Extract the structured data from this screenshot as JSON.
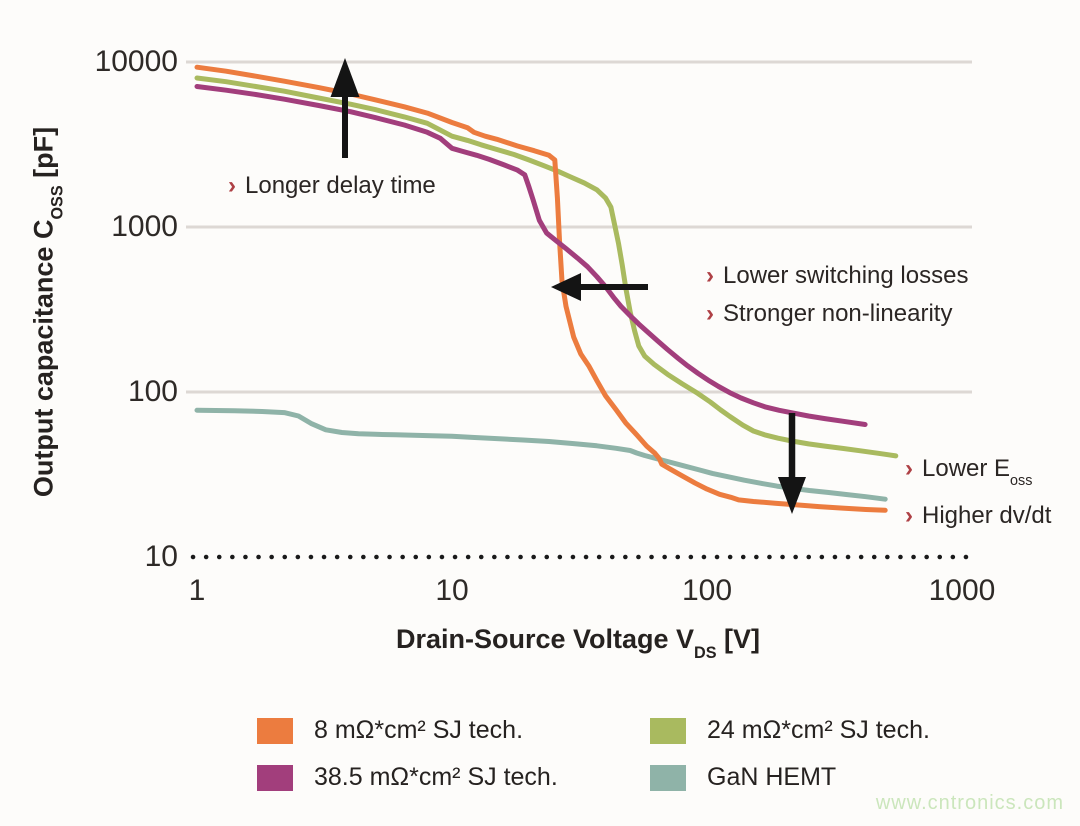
{
  "figure": {
    "watermark": "www.cntronics.com"
  },
  "colors": {
    "background": "#FDFCFA",
    "grid": "#DDD8D4",
    "baseline_dots": "#1A1A1A",
    "arrow": "#141414",
    "text": "#2B2624",
    "chevron": "#AE4045",
    "watermark": "#CBE6BC"
  },
  "axes": {
    "y": {
      "label_pre": "Output capacitance C",
      "label_sub": "OSS",
      "label_post": " [pF]",
      "ticks": [
        "10000",
        "1000",
        "100",
        "10"
      ],
      "range": [
        10,
        10000
      ]
    },
    "x": {
      "label_pre": "Drain-Source Voltage V",
      "label_sub": "DS",
      "label_post": " [V]",
      "ticks": [
        "1",
        "10",
        "100",
        "1000"
      ],
      "range": [
        1,
        1000
      ]
    }
  },
  "annotations": {
    "chevron": "›",
    "delay": {
      "line1": "Longer delay time",
      "arrow_dir": "up"
    },
    "switching": {
      "line1": "Lower switching losses",
      "line2": "Stronger non-linearity",
      "arrow_dir": "left"
    },
    "eoss": {
      "line1_pre": "Lower E",
      "line1_sub": "oss",
      "line2": "Higher dv/dt",
      "arrow_dir": "down"
    }
  },
  "chart_data": {
    "type": "line",
    "log_x": true,
    "log_y": true,
    "x_range": [
      1,
      1000
    ],
    "y_range": [
      10,
      10000
    ],
    "xlabel": "Drain-Source Voltage V_DS [V]",
    "ylabel": "Output capacitance C_OSS [pF]",
    "grid_y_values": [
      10000,
      1000,
      100
    ],
    "baseline_y_value": 10,
    "legend_position": "bottom",
    "series": [
      {
        "name": "8 mΩ*cm² SJ tech.",
        "color": "#EC7C3F",
        "points": [
          [
            1,
            9300
          ],
          [
            1.3,
            8800
          ],
          [
            1.7,
            8200
          ],
          [
            2.2,
            7650
          ],
          [
            3,
            7000
          ],
          [
            4,
            6400
          ],
          [
            5,
            5900
          ],
          [
            6.5,
            5350
          ],
          [
            8,
            4900
          ],
          [
            10,
            4300
          ],
          [
            11.5,
            4000
          ],
          [
            12.2,
            3750
          ],
          [
            13.5,
            3550
          ],
          [
            15,
            3400
          ],
          [
            18,
            3100
          ],
          [
            21,
            2900
          ],
          [
            24,
            2720
          ],
          [
            25.3,
            2550
          ],
          [
            25.9,
            1500
          ],
          [
            26.4,
            830
          ],
          [
            27,
            470
          ],
          [
            28,
            330
          ],
          [
            30,
            215
          ],
          [
            32,
            170
          ],
          [
            34.5,
            143
          ],
          [
            37,
            117
          ],
          [
            40,
            95
          ],
          [
            44,
            78
          ],
          [
            48,
            65
          ],
          [
            53,
            55
          ],
          [
            58,
            47
          ],
          [
            62.5,
            42.5
          ],
          [
            65,
            39.5
          ],
          [
            66.5,
            36.5
          ],
          [
            72,
            34
          ],
          [
            80,
            31
          ],
          [
            90,
            28
          ],
          [
            100,
            25.8
          ],
          [
            112,
            24
          ],
          [
            124,
            23
          ],
          [
            133,
            22.2
          ],
          [
            152,
            21.7
          ],
          [
            185,
            21.2
          ],
          [
            225,
            20.7
          ],
          [
            275,
            20.2
          ],
          [
            340,
            19.8
          ],
          [
            420,
            19.4
          ],
          [
            500,
            19.2
          ]
        ]
      },
      {
        "name": "24 mΩ*cm² SJ tech.",
        "color": "#A9BA5F",
        "points": [
          [
            1,
            8000
          ],
          [
            1.3,
            7600
          ],
          [
            1.7,
            7100
          ],
          [
            2.2,
            6650
          ],
          [
            3,
            6050
          ],
          [
            4,
            5550
          ],
          [
            5,
            5150
          ],
          [
            6.5,
            4650
          ],
          [
            8,
            4250
          ],
          [
            10,
            3550
          ],
          [
            11.5,
            3350
          ],
          [
            13,
            3150
          ],
          [
            15,
            2950
          ],
          [
            17.5,
            2750
          ],
          [
            20,
            2550
          ],
          [
            23,
            2350
          ],
          [
            26,
            2180
          ],
          [
            29,
            2020
          ],
          [
            33,
            1850
          ],
          [
            37,
            1680
          ],
          [
            40,
            1500
          ],
          [
            42,
            1320
          ],
          [
            43.5,
            1020
          ],
          [
            45,
            790
          ],
          [
            46.5,
            590
          ],
          [
            48,
            430
          ],
          [
            50,
            305
          ],
          [
            52,
            235
          ],
          [
            54,
            190
          ],
          [
            57,
            165
          ],
          [
            62,
            147
          ],
          [
            70,
            128
          ],
          [
            80,
            112
          ],
          [
            92,
            98
          ],
          [
            103,
            87
          ],
          [
            113,
            78
          ],
          [
            123,
            71
          ],
          [
            138,
            63
          ],
          [
            152,
            58
          ],
          [
            168,
            55
          ],
          [
            190,
            52.5
          ],
          [
            215,
            50.5
          ],
          [
            250,
            48.5
          ],
          [
            290,
            47
          ],
          [
            340,
            45.5
          ],
          [
            400,
            44
          ],
          [
            470,
            42.5
          ],
          [
            550,
            41
          ]
        ]
      },
      {
        "name": "38.5 mΩ*cm² SJ tech.",
        "color": "#A23E7C",
        "points": [
          [
            1,
            7100
          ],
          [
            1.3,
            6750
          ],
          [
            1.7,
            6350
          ],
          [
            2.2,
            5950
          ],
          [
            3,
            5450
          ],
          [
            4,
            5000
          ],
          [
            5,
            4600
          ],
          [
            6.5,
            4150
          ],
          [
            8,
            3750
          ],
          [
            9,
            3450
          ],
          [
            10,
            3000
          ],
          [
            11,
            2870
          ],
          [
            12.5,
            2720
          ],
          [
            14,
            2570
          ],
          [
            16,
            2380
          ],
          [
            18,
            2220
          ],
          [
            19.3,
            2070
          ],
          [
            20,
            1760
          ],
          [
            20.8,
            1460
          ],
          [
            22,
            1100
          ],
          [
            23.5,
            920
          ],
          [
            26,
            810
          ],
          [
            28,
            740
          ],
          [
            31,
            650
          ],
          [
            34,
            575
          ],
          [
            37,
            500
          ],
          [
            40,
            435
          ],
          [
            43,
            375
          ],
          [
            46,
            330
          ],
          [
            50,
            290
          ],
          [
            54,
            258
          ],
          [
            59,
            228
          ],
          [
            64,
            204
          ],
          [
            70,
            181
          ],
          [
            77,
            160
          ],
          [
            84,
            144
          ],
          [
            92,
            130
          ],
          [
            101,
            118
          ],
          [
            111,
            108
          ],
          [
            123,
            99
          ],
          [
            136,
            92
          ],
          [
            152,
            86
          ],
          [
            170,
            81
          ],
          [
            192,
            77.5
          ],
          [
            218,
            74.5
          ],
          [
            250,
            71.5
          ],
          [
            290,
            69
          ],
          [
            340,
            66.5
          ],
          [
            417,
            63.5
          ]
        ]
      },
      {
        "name": "GaN HEMT",
        "color": "#8FB3A8",
        "points": [
          [
            1,
            77.5
          ],
          [
            1.4,
            77
          ],
          [
            1.8,
            76.2
          ],
          [
            2.2,
            75
          ],
          [
            2.5,
            71.5
          ],
          [
            2.8,
            64.5
          ],
          [
            3.2,
            59
          ],
          [
            3.7,
            56.8
          ],
          [
            4.3,
            55.9
          ],
          [
            5,
            55.4
          ],
          [
            6,
            55
          ],
          [
            8,
            54.4
          ],
          [
            10,
            53.9
          ],
          [
            12,
            53.1
          ],
          [
            15,
            52.2
          ],
          [
            19,
            51.2
          ],
          [
            24,
            50.1
          ],
          [
            30,
            48.7
          ],
          [
            37,
            47.2
          ],
          [
            44,
            45.6
          ],
          [
            50,
            44.2
          ],
          [
            53,
            42.7
          ],
          [
            57,
            41.2
          ],
          [
            63,
            39.6
          ],
          [
            70,
            37.9
          ],
          [
            80,
            35.9
          ],
          [
            92,
            33.9
          ],
          [
            105,
            32.1
          ],
          [
            120,
            30.7
          ],
          [
            140,
            29.2
          ],
          [
            162,
            28
          ],
          [
            188,
            26.9
          ],
          [
            216,
            26.1
          ],
          [
            252,
            25.3
          ],
          [
            300,
            24.6
          ],
          [
            355,
            23.9
          ],
          [
            420,
            23.2
          ],
          [
            500,
            22.4
          ]
        ]
      }
    ]
  }
}
